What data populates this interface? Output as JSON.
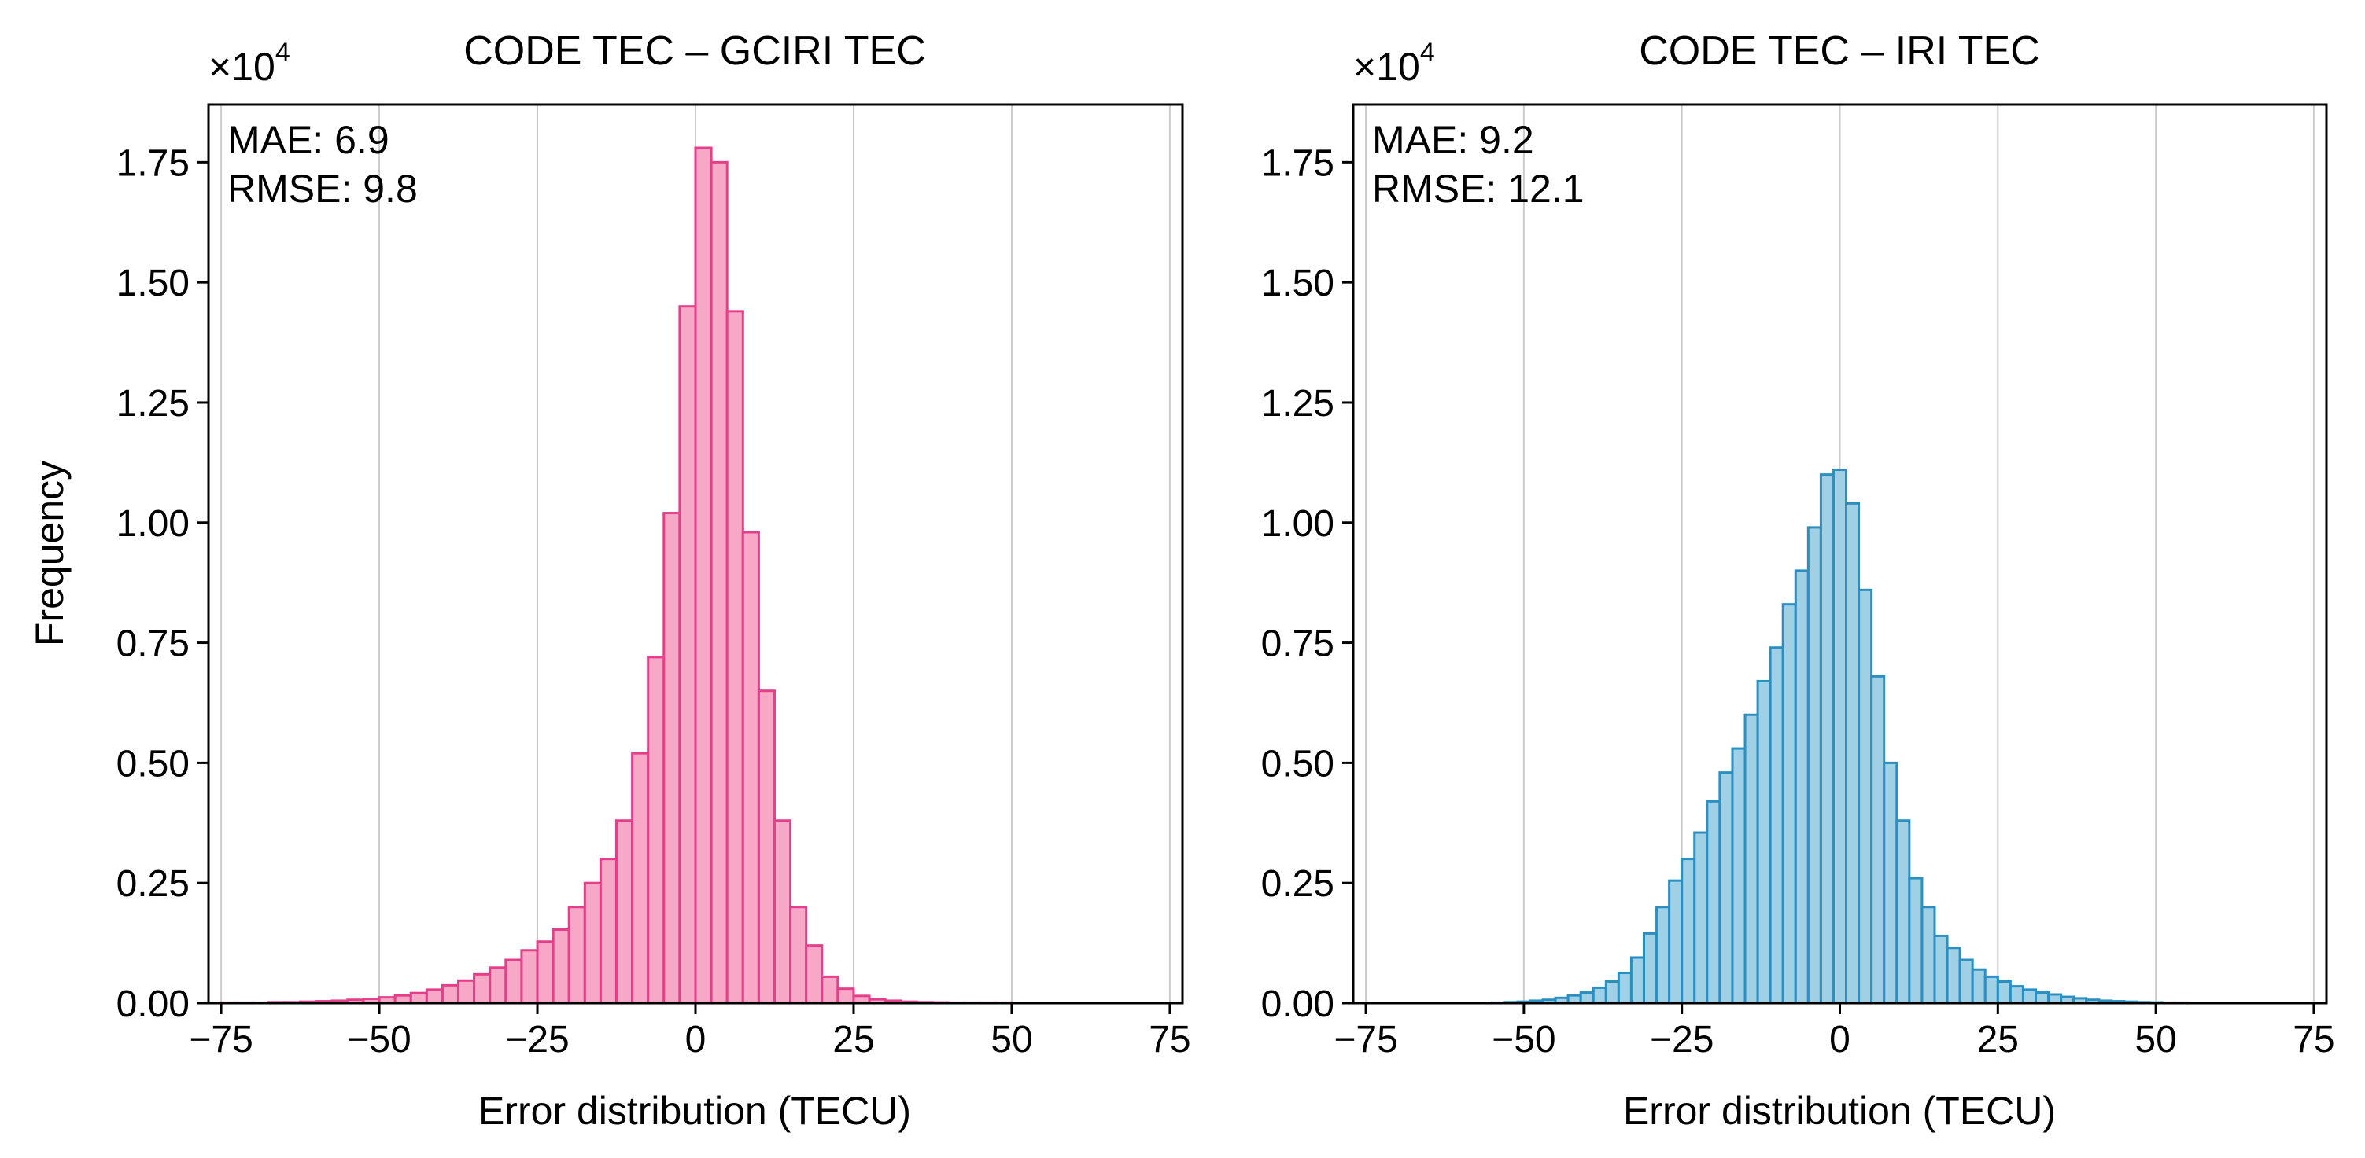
{
  "chart_data": [
    {
      "type": "bar",
      "subtype": "histogram",
      "title": "CODE TEC – GCIRI TEC",
      "xlabel": "Error distribution (TECU)",
      "ylabel": "Frequency",
      "multiplier": {
        "base": "×10",
        "exponent": "4"
      },
      "xlim": [
        -77,
        77
      ],
      "ylim": [
        0,
        1.87
      ],
      "xticks": [
        -75,
        -50,
        -25,
        0,
        25,
        50,
        75
      ],
      "xtick_labels": [
        "−75",
        "−50",
        "−25",
        "0",
        "25",
        "50",
        "75"
      ],
      "yticks": [
        0,
        0.25,
        0.5,
        0.75,
        1.0,
        1.25,
        1.5,
        1.75
      ],
      "ytick_labels": [
        "0.00",
        "0.25",
        "0.50",
        "0.75",
        "1.00",
        "1.25",
        "1.50",
        "1.75"
      ],
      "grid": "vertical",
      "bin_width": 2.5,
      "bin_start": -75,
      "values": [
        0.001,
        0.001,
        0.001,
        0.002,
        0.002,
        0.003,
        0.004,
        0.005,
        0.007,
        0.009,
        0.012,
        0.016,
        0.021,
        0.028,
        0.037,
        0.047,
        0.06,
        0.074,
        0.09,
        0.11,
        0.128,
        0.153,
        0.2,
        0.25,
        0.3,
        0.38,
        0.52,
        0.72,
        1.02,
        1.45,
        1.78,
        1.75,
        1.44,
        0.98,
        0.65,
        0.38,
        0.2,
        0.12,
        0.055,
        0.03,
        0.015,
        0.008,
        0.005,
        0.003,
        0.002,
        0.0015,
        0.001,
        0.001,
        0.001,
        0.001
      ],
      "stats": {
        "mae": "MAE: 6.9",
        "rmse": "RMSE: 9.8"
      },
      "colors": {
        "fill": "#f8a8c7",
        "edge": "#e33f8a"
      }
    },
    {
      "type": "bar",
      "subtype": "histogram",
      "title": "CODE TEC – IRI TEC",
      "xlabel": "Error distribution (TECU)",
      "ylabel": "",
      "multiplier": {
        "base": "×10",
        "exponent": "4"
      },
      "xlim": [
        -77,
        77
      ],
      "ylim": [
        0,
        1.87
      ],
      "xticks": [
        -75,
        -50,
        -25,
        0,
        25,
        50,
        75
      ],
      "xtick_labels": [
        "−75",
        "−50",
        "−25",
        "0",
        "25",
        "50",
        "75"
      ],
      "yticks": [
        0,
        0.25,
        0.5,
        0.75,
        1.0,
        1.25,
        1.5,
        1.75
      ],
      "ytick_labels": [
        "0.00",
        "0.25",
        "0.50",
        "0.75",
        "1.00",
        "1.25",
        "1.50",
        "1.75"
      ],
      "grid": "vertical",
      "bin_width": 2.0,
      "bin_start": -55,
      "values": [
        0.001,
        0.002,
        0.003,
        0.005,
        0.007,
        0.011,
        0.016,
        0.022,
        0.032,
        0.045,
        0.063,
        0.095,
        0.145,
        0.2,
        0.255,
        0.3,
        0.355,
        0.42,
        0.48,
        0.53,
        0.6,
        0.67,
        0.74,
        0.83,
        0.9,
        0.99,
        1.1,
        1.11,
        1.04,
        0.86,
        0.68,
        0.5,
        0.38,
        0.26,
        0.2,
        0.14,
        0.115,
        0.09,
        0.07,
        0.055,
        0.045,
        0.035,
        0.028,
        0.022,
        0.018,
        0.013,
        0.01,
        0.007,
        0.005,
        0.004,
        0.003,
        0.002,
        0.0015,
        0.001,
        0.001
      ],
      "stats": {
        "mae": "MAE: 9.2",
        "rmse": "RMSE: 12.1"
      },
      "colors": {
        "fill": "#9fd0e6",
        "edge": "#2a8fc1"
      }
    }
  ]
}
